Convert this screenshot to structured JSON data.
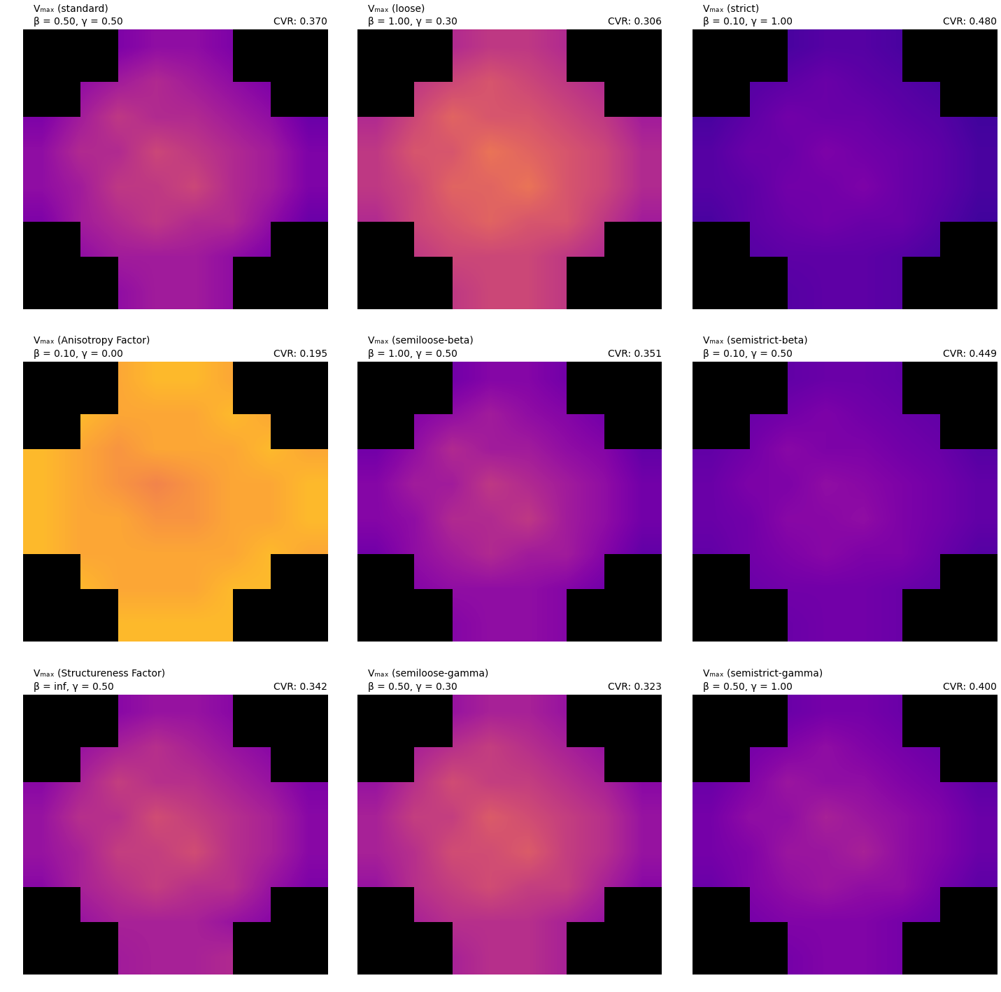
{
  "chart_data": [
    {
      "type": "heatmap",
      "title": "Vₘₐₓ (standard)",
      "subtitle": "β = 0.50, γ = 0.50",
      "annotation": "CVR: 0.370",
      "tick_labels": false,
      "zlim": [
        0,
        1
      ],
      "cells": [
        [
          null,
          null,
          0.25,
          0.3,
          0.3,
          0.25,
          null,
          null
        ],
        [
          null,
          0.3,
          0.35,
          0.4,
          0.35,
          0.3,
          0.25,
          null
        ],
        [
          0.25,
          0.35,
          0.45,
          0.4,
          0.4,
          0.35,
          0.3,
          0.2
        ],
        [
          0.3,
          0.4,
          0.4,
          0.5,
          0.45,
          0.4,
          0.35,
          0.25
        ],
        [
          0.3,
          0.35,
          0.45,
          0.45,
          0.5,
          0.4,
          0.35,
          0.25
        ],
        [
          0.25,
          0.35,
          0.4,
          0.45,
          0.4,
          0.4,
          0.3,
          0.2
        ],
        [
          null,
          0.3,
          0.35,
          0.35,
          0.35,
          0.3,
          0.25,
          null
        ],
        [
          null,
          null,
          0.3,
          0.35,
          0.35,
          0.3,
          null,
          null
        ]
      ]
    },
    {
      "type": "heatmap",
      "title": "Vₘₐₓ (loose)",
      "subtitle": "β = 1.00, γ = 0.30",
      "annotation": "CVR: 0.306",
      "tick_labels": false,
      "zlim": [
        0,
        1
      ],
      "cells": [
        [
          null,
          null,
          0.4,
          0.45,
          0.45,
          0.4,
          null,
          null
        ],
        [
          null,
          0.45,
          0.5,
          0.55,
          0.5,
          0.45,
          0.4,
          null
        ],
        [
          0.4,
          0.5,
          0.6,
          0.55,
          0.55,
          0.5,
          0.45,
          0.35
        ],
        [
          0.45,
          0.55,
          0.55,
          0.65,
          0.6,
          0.55,
          0.5,
          0.4
        ],
        [
          0.45,
          0.5,
          0.6,
          0.6,
          0.65,
          0.55,
          0.5,
          0.4
        ],
        [
          0.4,
          0.5,
          0.55,
          0.6,
          0.55,
          0.55,
          0.45,
          0.35
        ],
        [
          null,
          0.45,
          0.5,
          0.5,
          0.5,
          0.45,
          0.4,
          null
        ],
        [
          null,
          null,
          0.45,
          0.5,
          0.5,
          0.45,
          null,
          null
        ]
      ]
    },
    {
      "type": "heatmap",
      "title": "Vₘₐₓ (strict)",
      "subtitle": "β = 0.10, γ = 1.00",
      "annotation": "CVR: 0.480",
      "tick_labels": false,
      "zlim": [
        0,
        1
      ],
      "cells": [
        [
          null,
          null,
          0.12,
          0.15,
          0.15,
          0.12,
          null,
          null
        ],
        [
          null,
          0.15,
          0.17,
          0.2,
          0.17,
          0.15,
          0.12,
          null
        ],
        [
          0.12,
          0.17,
          0.22,
          0.2,
          0.2,
          0.17,
          0.15,
          0.1
        ],
        [
          0.15,
          0.2,
          0.2,
          0.25,
          0.22,
          0.2,
          0.17,
          0.12
        ],
        [
          0.15,
          0.17,
          0.22,
          0.22,
          0.25,
          0.2,
          0.17,
          0.12
        ],
        [
          0.12,
          0.17,
          0.2,
          0.22,
          0.2,
          0.2,
          0.15,
          0.1
        ],
        [
          null,
          0.15,
          0.17,
          0.17,
          0.17,
          0.15,
          0.12,
          null
        ],
        [
          null,
          null,
          0.15,
          0.17,
          0.17,
          0.15,
          null,
          null
        ]
      ]
    },
    {
      "type": "heatmap",
      "title": "Vₘₐₓ (Anisotropy Factor)",
      "subtitle": "β = 0.10, γ = 0.00",
      "annotation": "CVR: 0.195",
      "tick_labels": false,
      "zlim": [
        0,
        1
      ],
      "cells": [
        [
          null,
          null,
          0.8,
          0.85,
          0.85,
          0.8,
          null,
          null
        ],
        [
          null,
          0.85,
          0.8,
          0.8,
          0.8,
          0.85,
          0.8,
          null
        ],
        [
          0.85,
          0.8,
          0.75,
          0.8,
          0.8,
          0.8,
          0.85,
          0.8
        ],
        [
          0.85,
          0.8,
          0.75,
          0.7,
          0.75,
          0.8,
          0.8,
          0.85
        ],
        [
          0.85,
          0.8,
          0.8,
          0.75,
          0.75,
          0.8,
          0.8,
          0.85
        ],
        [
          0.85,
          0.8,
          0.8,
          0.8,
          0.8,
          0.8,
          0.85,
          0.8
        ],
        [
          null,
          0.85,
          0.8,
          0.8,
          0.8,
          0.85,
          0.85,
          null
        ],
        [
          null,
          null,
          0.85,
          0.85,
          0.85,
          0.85,
          null,
          null
        ]
      ]
    },
    {
      "type": "heatmap",
      "title": "Vₘₐₓ (semiloose-beta)",
      "subtitle": "β = 1.00, γ = 0.50",
      "annotation": "CVR: 0.351",
      "tick_labels": false,
      "zlim": [
        0,
        1
      ],
      "cells": [
        [
          null,
          null,
          0.22,
          0.27,
          0.27,
          0.22,
          null,
          null
        ],
        [
          null,
          0.27,
          0.3,
          0.35,
          0.3,
          0.27,
          0.22,
          null
        ],
        [
          0.22,
          0.3,
          0.4,
          0.35,
          0.35,
          0.3,
          0.27,
          0.18
        ],
        [
          0.27,
          0.35,
          0.35,
          0.45,
          0.4,
          0.35,
          0.3,
          0.22
        ],
        [
          0.27,
          0.3,
          0.4,
          0.4,
          0.45,
          0.35,
          0.3,
          0.22
        ],
        [
          0.22,
          0.3,
          0.35,
          0.4,
          0.35,
          0.35,
          0.27,
          0.18
        ],
        [
          null,
          0.27,
          0.3,
          0.3,
          0.3,
          0.27,
          0.22,
          null
        ],
        [
          null,
          null,
          0.27,
          0.3,
          0.3,
          0.27,
          null,
          null
        ]
      ]
    },
    {
      "type": "heatmap",
      "title": "Vₘₐₓ (semistrict-beta)",
      "subtitle": "β = 0.10, γ = 0.50",
      "annotation": "CVR: 0.449",
      "tick_labels": false,
      "zlim": [
        0,
        1
      ],
      "cells": [
        [
          null,
          null,
          0.18,
          0.2,
          0.2,
          0.18,
          null,
          null
        ],
        [
          null,
          0.2,
          0.22,
          0.25,
          0.22,
          0.2,
          0.18,
          null
        ],
        [
          0.18,
          0.22,
          0.28,
          0.25,
          0.25,
          0.22,
          0.2,
          0.15
        ],
        [
          0.2,
          0.25,
          0.25,
          0.3,
          0.28,
          0.25,
          0.22,
          0.18
        ],
        [
          0.2,
          0.22,
          0.28,
          0.28,
          0.3,
          0.25,
          0.22,
          0.18
        ],
        [
          0.18,
          0.22,
          0.25,
          0.28,
          0.25,
          0.25,
          0.2,
          0.15
        ],
        [
          null,
          0.2,
          0.22,
          0.22,
          0.22,
          0.2,
          0.18,
          null
        ],
        [
          null,
          null,
          0.2,
          0.22,
          0.22,
          0.2,
          null,
          null
        ]
      ]
    },
    {
      "type": "heatmap",
      "title": "Vₘₐₓ (Structureness Factor)",
      "subtitle": "β = inf, γ = 0.50",
      "annotation": "CVR: 0.342",
      "tick_labels": false,
      "zlim": [
        0,
        1
      ],
      "cells": [
        [
          null,
          null,
          0.28,
          0.32,
          0.32,
          0.28,
          null,
          null
        ],
        [
          null,
          0.32,
          0.37,
          0.42,
          0.37,
          0.32,
          0.28,
          null
        ],
        [
          0.28,
          0.37,
          0.47,
          0.42,
          0.42,
          0.37,
          0.32,
          0.25
        ],
        [
          0.32,
          0.42,
          0.42,
          0.52,
          0.47,
          0.42,
          0.37,
          0.28
        ],
        [
          0.32,
          0.37,
          0.47,
          0.47,
          0.52,
          0.42,
          0.37,
          0.28
        ],
        [
          0.28,
          0.37,
          0.42,
          0.47,
          0.42,
          0.42,
          0.32,
          0.25
        ],
        [
          null,
          0.32,
          0.37,
          0.37,
          0.37,
          0.32,
          0.28,
          null
        ],
        [
          null,
          null,
          0.35,
          0.37,
          0.37,
          0.4,
          null,
          null
        ]
      ]
    },
    {
      "type": "heatmap",
      "title": "Vₘₐₓ (semiloose-gamma)",
      "subtitle": "β = 0.50, γ = 0.30",
      "annotation": "CVR: 0.323",
      "tick_labels": false,
      "zlim": [
        0,
        1
      ],
      "cells": [
        [
          null,
          null,
          0.32,
          0.37,
          0.37,
          0.32,
          null,
          null
        ],
        [
          null,
          0.37,
          0.42,
          0.47,
          0.42,
          0.37,
          0.32,
          null
        ],
        [
          0.32,
          0.42,
          0.52,
          0.47,
          0.47,
          0.42,
          0.37,
          0.28
        ],
        [
          0.37,
          0.47,
          0.47,
          0.57,
          0.52,
          0.47,
          0.42,
          0.32
        ],
        [
          0.37,
          0.42,
          0.52,
          0.52,
          0.57,
          0.47,
          0.42,
          0.32
        ],
        [
          0.32,
          0.42,
          0.47,
          0.52,
          0.47,
          0.47,
          0.37,
          0.28
        ],
        [
          null,
          0.37,
          0.42,
          0.42,
          0.42,
          0.37,
          0.32,
          null
        ],
        [
          null,
          null,
          0.37,
          0.42,
          0.42,
          0.37,
          null,
          null
        ]
      ]
    },
    {
      "type": "heatmap",
      "title": "Vₘₐₓ (semistrict-gamma)",
      "subtitle": "β = 0.50, γ = 1.00",
      "annotation": "CVR: 0.400",
      "tick_labels": false,
      "zlim": [
        0,
        1
      ],
      "cells": [
        [
          null,
          null,
          0.2,
          0.23,
          0.23,
          0.2,
          null,
          null
        ],
        [
          null,
          0.23,
          0.26,
          0.3,
          0.26,
          0.23,
          0.2,
          null
        ],
        [
          0.2,
          0.26,
          0.33,
          0.3,
          0.3,
          0.26,
          0.23,
          0.17
        ],
        [
          0.23,
          0.3,
          0.3,
          0.37,
          0.33,
          0.3,
          0.26,
          0.2
        ],
        [
          0.23,
          0.26,
          0.33,
          0.33,
          0.37,
          0.3,
          0.26,
          0.2
        ],
        [
          0.2,
          0.26,
          0.3,
          0.33,
          0.3,
          0.3,
          0.23,
          0.17
        ],
        [
          null,
          0.23,
          0.26,
          0.26,
          0.26,
          0.23,
          0.2,
          null
        ],
        [
          null,
          null,
          0.23,
          0.26,
          0.26,
          0.23,
          null,
          null
        ]
      ]
    }
  ]
}
